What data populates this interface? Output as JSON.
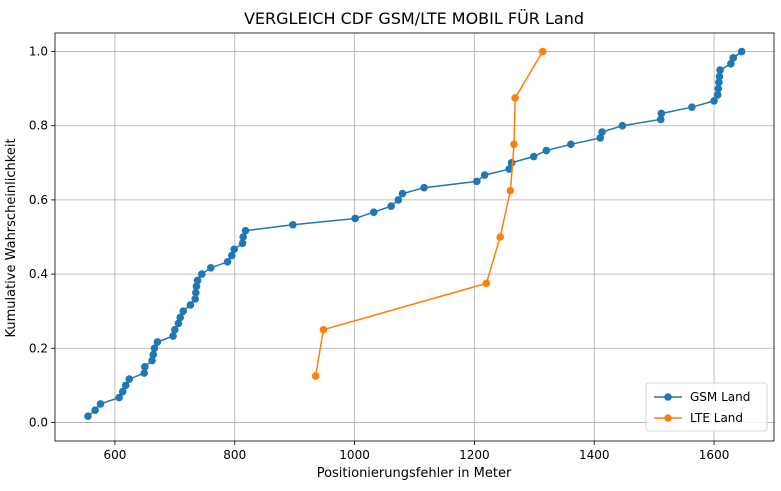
{
  "chart_data": {
    "type": "line",
    "title": "VERGLEICH CDF GSM/LTE MOBIL FÜR Land",
    "xlabel": "Positionierungsfehler in Meter",
    "ylabel": "Kumulative Wahrscheinlichkeit",
    "xlim": [
      500,
      1700
    ],
    "ylim": [
      -0.05,
      1.05
    ],
    "xticks": [
      600,
      800,
      1000,
      1200,
      1400,
      1600
    ],
    "yticks": [
      0.0,
      0.2,
      0.4,
      0.6,
      0.8,
      1.0
    ],
    "xtick_labels": [
      "600",
      "800",
      "1000",
      "1200",
      "1400",
      "1600"
    ],
    "ytick_labels": [
      "0.0",
      "0.2",
      "0.4",
      "0.6",
      "0.8",
      "1.0"
    ],
    "grid": true,
    "legend_position": "lower-right",
    "series": [
      {
        "name": "GSM Land",
        "color": "#1f77b4",
        "marker": "circle",
        "x": [
          555,
          567,
          576,
          607,
          613,
          618,
          624,
          649,
          650,
          662,
          664,
          666,
          671,
          697,
          700,
          706,
          709,
          714,
          726,
          734,
          735,
          736,
          738,
          745,
          760,
          788,
          795,
          799,
          813,
          814,
          818,
          897,
          1001,
          1032,
          1061,
          1073,
          1080,
          1116,
          1204,
          1217,
          1258,
          1262,
          1299,
          1320,
          1361,
          1410,
          1413,
          1447,
          1511,
          1512,
          1563,
          1600,
          1606,
          1607,
          1608,
          1609,
          1610,
          1628,
          1632,
          1646
        ],
        "y": [
          0.017,
          0.033,
          0.05,
          0.067,
          0.083,
          0.1,
          0.117,
          0.133,
          0.15,
          0.167,
          0.183,
          0.2,
          0.217,
          0.233,
          0.25,
          0.267,
          0.283,
          0.3,
          0.317,
          0.333,
          0.35,
          0.367,
          0.383,
          0.4,
          0.417,
          0.433,
          0.45,
          0.467,
          0.483,
          0.5,
          0.517,
          0.533,
          0.55,
          0.567,
          0.583,
          0.6,
          0.617,
          0.633,
          0.65,
          0.667,
          0.683,
          0.7,
          0.717,
          0.733,
          0.75,
          0.767,
          0.783,
          0.8,
          0.817,
          0.833,
          0.85,
          0.867,
          0.883,
          0.9,
          0.917,
          0.933,
          0.95,
          0.967,
          0.983,
          1.0
        ]
      },
      {
        "name": "LTE Land",
        "color": "#ff7f0e",
        "marker": "circle",
        "x": [
          935,
          948,
          1220,
          1243,
          1260,
          1266,
          1268,
          1314
        ],
        "y": [
          0.125,
          0.25,
          0.375,
          0.5,
          0.625,
          0.75,
          0.875,
          1.0
        ]
      }
    ]
  }
}
